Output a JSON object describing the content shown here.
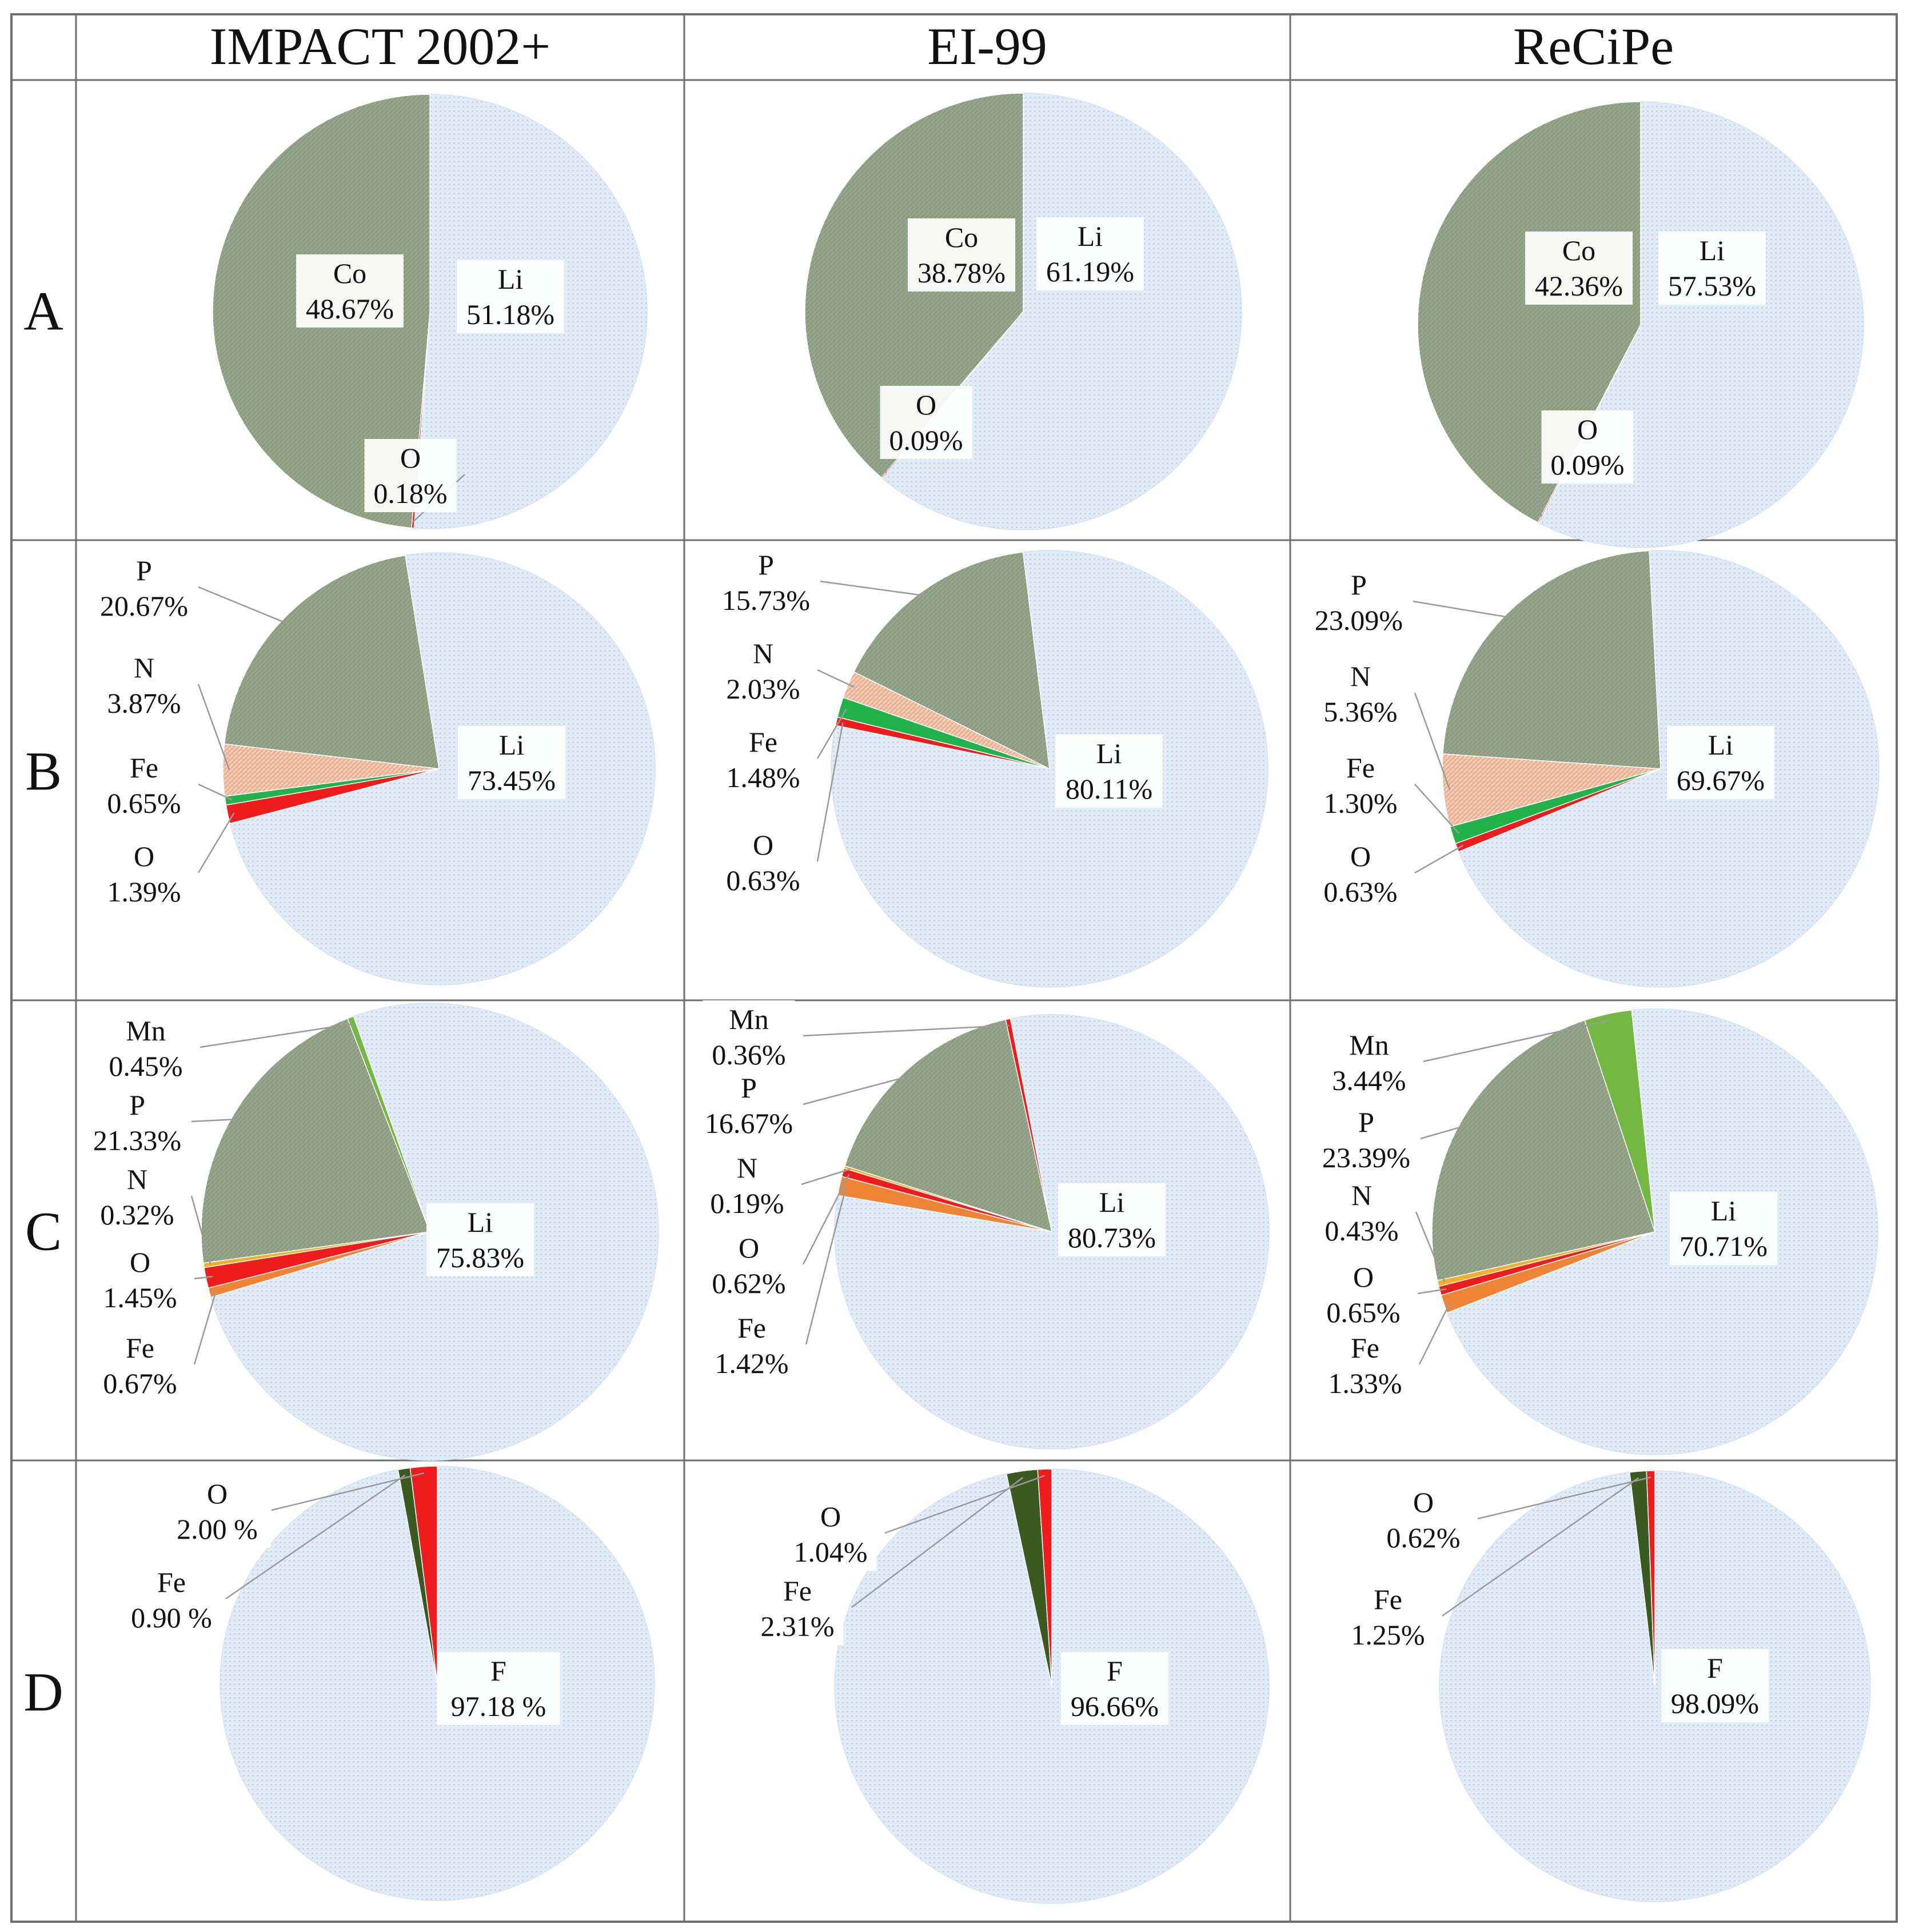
{
  "column_headers": [
    "IMPACT 2002+",
    "EI-99",
    "ReCiPe"
  ],
  "row_labels": [
    "A",
    "B",
    "C",
    "D"
  ],
  "colors": {
    "Li": "#e2ecf8",
    "F": "#e2ecf8",
    "Co": "#96a58b",
    "P": "#96a58b",
    "N": "#ecb496",
    "Fe": "#22b24c",
    "O": "#ee1c1c",
    "Mn": "#74b843",
    "Fe_C": "#ef8336",
    "N_C": "#f2b02a",
    "Fe_D": "#3b5a22",
    "grid": "#6f6f6f"
  },
  "chart_data": [
    {
      "type": "pie",
      "row": "A",
      "method": "IMPACT 2002+",
      "slices": [
        {
          "label": "Li",
          "value": 51.18,
          "text": "51.18%",
          "color": "Li"
        },
        {
          "label": "O",
          "value": 0.18,
          "text": "0.18%",
          "color": "O"
        },
        {
          "label": "Co",
          "value": 48.67,
          "text": "48.67%",
          "color": "Co"
        }
      ]
    },
    {
      "type": "pie",
      "row": "A",
      "method": "EI-99",
      "slices": [
        {
          "label": "Li",
          "value": 61.19,
          "text": "61.19%",
          "color": "Li"
        },
        {
          "label": "O",
          "value": 0.09,
          "text": "0.09%",
          "color": "O"
        },
        {
          "label": "Co",
          "value": 38.78,
          "text": "38.78%",
          "color": "Co"
        }
      ]
    },
    {
      "type": "pie",
      "row": "A",
      "method": "ReCiPe",
      "slices": [
        {
          "label": "Li",
          "value": 57.53,
          "text": "57.53%",
          "color": "Li"
        },
        {
          "label": "O",
          "value": 0.09,
          "text": "0.09%",
          "color": "O"
        },
        {
          "label": "Co",
          "value": 42.36,
          "text": "42.36%",
          "color": "Co"
        }
      ]
    },
    {
      "type": "pie",
      "row": "B",
      "method": "IMPACT 2002+",
      "slices": [
        {
          "label": "Li",
          "value": 73.45,
          "text": "73.45%",
          "color": "Li"
        },
        {
          "label": "O",
          "value": 1.39,
          "text": "1.39%",
          "color": "O"
        },
        {
          "label": "Fe",
          "value": 0.65,
          "text": "0.65%",
          "color": "Fe"
        },
        {
          "label": "N",
          "value": 3.87,
          "text": "3.87%",
          "color": "N"
        },
        {
          "label": "P",
          "value": 20.67,
          "text": "20.67%",
          "color": "P"
        }
      ]
    },
    {
      "type": "pie",
      "row": "B",
      "method": "EI-99",
      "slices": [
        {
          "label": "Li",
          "value": 80.11,
          "text": "80.11%",
          "color": "Li"
        },
        {
          "label": "O",
          "value": 0.63,
          "text": "0.63%",
          "color": "O"
        },
        {
          "label": "Fe",
          "value": 1.48,
          "text": "1.48%",
          "color": "Fe"
        },
        {
          "label": "N",
          "value": 2.03,
          "text": "2.03%",
          "color": "N"
        },
        {
          "label": "P",
          "value": 15.73,
          "text": "15.73%",
          "color": "P"
        }
      ]
    },
    {
      "type": "pie",
      "row": "B",
      "method": "ReCiPe",
      "slices": [
        {
          "label": "Li",
          "value": 69.67,
          "text": "69.67%",
          "color": "Li"
        },
        {
          "label": "O",
          "value": 0.63,
          "text": "0.63%",
          "color": "O"
        },
        {
          "label": "Fe",
          "value": 1.3,
          "text": "1.30%",
          "color": "Fe"
        },
        {
          "label": "N",
          "value": 5.36,
          "text": "5.36%",
          "color": "N"
        },
        {
          "label": "P",
          "value": 23.09,
          "text": "23.09%",
          "color": "P"
        }
      ]
    },
    {
      "type": "pie",
      "row": "C",
      "method": "IMPACT 2002+",
      "slices": [
        {
          "label": "Li",
          "value": 75.83,
          "text": "75.83%",
          "color": "Li"
        },
        {
          "label": "Fe",
          "value": 0.67,
          "text": "0.67%",
          "color": "Fe_C"
        },
        {
          "label": "O",
          "value": 1.45,
          "text": "1.45%",
          "color": "O"
        },
        {
          "label": "N",
          "value": 0.32,
          "text": "0.32%",
          "color": "N_C"
        },
        {
          "label": "P",
          "value": 21.33,
          "text": "21.33%",
          "color": "P"
        },
        {
          "label": "Mn",
          "value": 0.45,
          "text": "0.45%",
          "color": "Mn"
        }
      ]
    },
    {
      "type": "pie",
      "row": "C",
      "method": "EI-99",
      "slices": [
        {
          "label": "Li",
          "value": 80.73,
          "text": "80.73%",
          "color": "Li"
        },
        {
          "label": "Fe",
          "value": 1.42,
          "text": "1.42%",
          "color": "Fe_C"
        },
        {
          "label": "O",
          "value": 0.62,
          "text": "0.62%",
          "color": "O"
        },
        {
          "label": "N",
          "value": 0.19,
          "text": "0.19%",
          "color": "N_C"
        },
        {
          "label": "P",
          "value": 16.67,
          "text": "16.67%",
          "color": "P"
        },
        {
          "label": "Mn",
          "value": 0.36,
          "text": "0.36%",
          "color": "O"
        }
      ]
    },
    {
      "type": "pie",
      "row": "C",
      "method": "ReCiPe",
      "slices": [
        {
          "label": "Li",
          "value": 70.71,
          "text": "70.71%",
          "color": "Li"
        },
        {
          "label": "Fe",
          "value": 1.33,
          "text": "1.33%",
          "color": "Fe_C"
        },
        {
          "label": "O",
          "value": 0.65,
          "text": "0.65%",
          "color": "O"
        },
        {
          "label": "N",
          "value": 0.43,
          "text": "0.43%",
          "color": "N_C"
        },
        {
          "label": "P",
          "value": 23.39,
          "text": "23.39%",
          "color": "P"
        },
        {
          "label": "Mn",
          "value": 3.44,
          "text": "3.44%",
          "color": "Mn"
        }
      ]
    },
    {
      "type": "pie",
      "row": "D",
      "method": "IMPACT 2002+",
      "slices": [
        {
          "label": "F",
          "value": 97.18,
          "text": "97.18 %",
          "color": "F"
        },
        {
          "label": "Fe",
          "value": 0.9,
          "text": "0.90 %",
          "color": "Fe_D"
        },
        {
          "label": "O",
          "value": 2.0,
          "text": "2.00 %",
          "color": "O"
        }
      ]
    },
    {
      "type": "pie",
      "row": "D",
      "method": "EI-99",
      "slices": [
        {
          "label": "F",
          "value": 96.66,
          "text": "96.66%",
          "color": "F"
        },
        {
          "label": "Fe",
          "value": 2.31,
          "text": "2.31%",
          "color": "Fe_D"
        },
        {
          "label": "O",
          "value": 1.04,
          "text": "1.04%",
          "color": "O"
        }
      ]
    },
    {
      "type": "pie",
      "row": "D",
      "method": "ReCiPe",
      "slices": [
        {
          "label": "F",
          "value": 98.09,
          "text": "98.09%",
          "color": "F"
        },
        {
          "label": "Fe",
          "value": 1.25,
          "text": "1.25%",
          "color": "Fe_D"
        },
        {
          "label": "O",
          "value": 0.62,
          "text": "0.62%",
          "color": "O"
        }
      ]
    }
  ]
}
